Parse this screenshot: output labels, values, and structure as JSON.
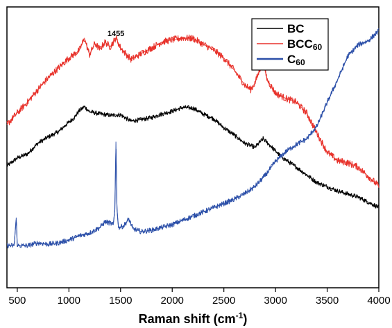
{
  "chart_data": {
    "type": "line",
    "title": "",
    "xlabel": "Raman shift (cm",
    "xlabel_superscript": "-1",
    "xlabel_suffix": ")",
    "ylabel": "",
    "xlim": [
      400,
      4000
    ],
    "ylim": [
      0,
      100
    ],
    "y_ticks_labeled": false,
    "grid": false,
    "legend_placement": "top-right",
    "x_ticks": [
      500,
      1000,
      1500,
      2000,
      2500,
      3000,
      3500,
      4000
    ],
    "x_tick_labels": [
      "500",
      "1000",
      "1500",
      "2000",
      "2500",
      "3000",
      "3500",
      "4000"
    ],
    "annotations": [
      {
        "text": "1455",
        "x": 1455,
        "y": 89.6
      }
    ],
    "series": [
      {
        "name": "BC",
        "legend_main": "BC",
        "legend_sub": "",
        "color": "#000000",
        "noise": 0.8,
        "points": [
          [
            400,
            43.4
          ],
          [
            500,
            46.2
          ],
          [
            600,
            47.7
          ],
          [
            700,
            51.5
          ],
          [
            800,
            53.7
          ],
          [
            900,
            55.6
          ],
          [
            1000,
            59.0
          ],
          [
            1050,
            60.5
          ],
          [
            1100,
            63.0
          ],
          [
            1150,
            64.5
          ],
          [
            1200,
            62.7
          ],
          [
            1300,
            61.9
          ],
          [
            1400,
            61.4
          ],
          [
            1500,
            61.6
          ],
          [
            1600,
            59.3
          ],
          [
            1700,
            59.9
          ],
          [
            1800,
            60.6
          ],
          [
            1900,
            61.9
          ],
          [
            2000,
            62.9
          ],
          [
            2100,
            64.2
          ],
          [
            2200,
            64.0
          ],
          [
            2300,
            61.9
          ],
          [
            2400,
            60.2
          ],
          [
            2500,
            57.0
          ],
          [
            2600,
            54.4
          ],
          [
            2700,
            51.5
          ],
          [
            2800,
            50.0
          ],
          [
            2880,
            53.1
          ],
          [
            2950,
            50.6
          ],
          [
            3050,
            46.8
          ],
          [
            3200,
            43.0
          ],
          [
            3400,
            37.5
          ],
          [
            3600,
            34.5
          ],
          [
            3800,
            32.3
          ],
          [
            4000,
            28.6
          ]
        ]
      },
      {
        "name": "BCC60",
        "legend_main": "BCC",
        "legend_sub": "60",
        "color": "#e8322b",
        "noise": 1.2,
        "points": [
          [
            400,
            58.1
          ],
          [
            500,
            62.3
          ],
          [
            600,
            66.1
          ],
          [
            700,
            70.6
          ],
          [
            800,
            74.8
          ],
          [
            900,
            78.3
          ],
          [
            1000,
            81.8
          ],
          [
            1100,
            84.5
          ],
          [
            1150,
            88.8
          ],
          [
            1200,
            83.0
          ],
          [
            1250,
            87.0
          ],
          [
            1300,
            85.0
          ],
          [
            1350,
            87.5
          ],
          [
            1400,
            85.8
          ],
          [
            1455,
            89.0
          ],
          [
            1500,
            85.4
          ],
          [
            1600,
            81.3
          ],
          [
            1700,
            83.4
          ],
          [
            1800,
            85.4
          ],
          [
            1900,
            87.5
          ],
          [
            2000,
            88.3
          ],
          [
            2100,
            89.0
          ],
          [
            2200,
            88.8
          ],
          [
            2300,
            86.7
          ],
          [
            2400,
            84.7
          ],
          [
            2500,
            81.8
          ],
          [
            2600,
            77.5
          ],
          [
            2700,
            72.3
          ],
          [
            2760,
            70.6
          ],
          [
            2800,
            72.8
          ],
          [
            2860,
            79.0
          ],
          [
            2880,
            80.3
          ],
          [
            2920,
            74.0
          ],
          [
            3000,
            69.3
          ],
          [
            3100,
            67.4
          ],
          [
            3200,
            66.1
          ],
          [
            3300,
            62.3
          ],
          [
            3400,
            55.1
          ],
          [
            3500,
            48.3
          ],
          [
            3600,
            45.3
          ],
          [
            3700,
            44.5
          ],
          [
            3800,
            43.0
          ],
          [
            3900,
            39.6
          ],
          [
            4000,
            36.2
          ]
        ]
      },
      {
        "name": "C60",
        "legend_main": "C",
        "legend_sub": "60",
        "color": "#2b4fa8",
        "noise": 0.9,
        "points": [
          [
            400,
            15.0
          ],
          [
            470,
            15.0
          ],
          [
            490,
            25.0
          ],
          [
            500,
            15.0
          ],
          [
            600,
            15.0
          ],
          [
            700,
            16.0
          ],
          [
            800,
            15.5
          ],
          [
            900,
            16.0
          ],
          [
            1000,
            17.0
          ],
          [
            1100,
            18.5
          ],
          [
            1200,
            19.5
          ],
          [
            1300,
            21.5
          ],
          [
            1350,
            23.5
          ],
          [
            1400,
            23.0
          ],
          [
            1430,
            22.5
          ],
          [
            1445,
            28.0
          ],
          [
            1455,
            52.0
          ],
          [
            1465,
            28.0
          ],
          [
            1480,
            21.5
          ],
          [
            1530,
            22.0
          ],
          [
            1580,
            24.5
          ],
          [
            1620,
            21.0
          ],
          [
            1700,
            20.0
          ],
          [
            1800,
            20.5
          ],
          [
            1900,
            21.5
          ],
          [
            2000,
            22.5
          ],
          [
            2100,
            24.0
          ],
          [
            2200,
            25.5
          ],
          [
            2300,
            27.0
          ],
          [
            2400,
            28.5
          ],
          [
            2500,
            30.0
          ],
          [
            2600,
            31.5
          ],
          [
            2700,
            33.5
          ],
          [
            2800,
            36.0
          ],
          [
            2900,
            40.0
          ],
          [
            3000,
            45.0
          ],
          [
            3100,
            48.5
          ],
          [
            3200,
            51.0
          ],
          [
            3300,
            53.0
          ],
          [
            3400,
            57.5
          ],
          [
            3500,
            66.0
          ],
          [
            3600,
            74.0
          ],
          [
            3700,
            82.5
          ],
          [
            3800,
            86.5
          ],
          [
            3900,
            88.0
          ],
          [
            4000,
            91.5
          ]
        ]
      }
    ]
  }
}
